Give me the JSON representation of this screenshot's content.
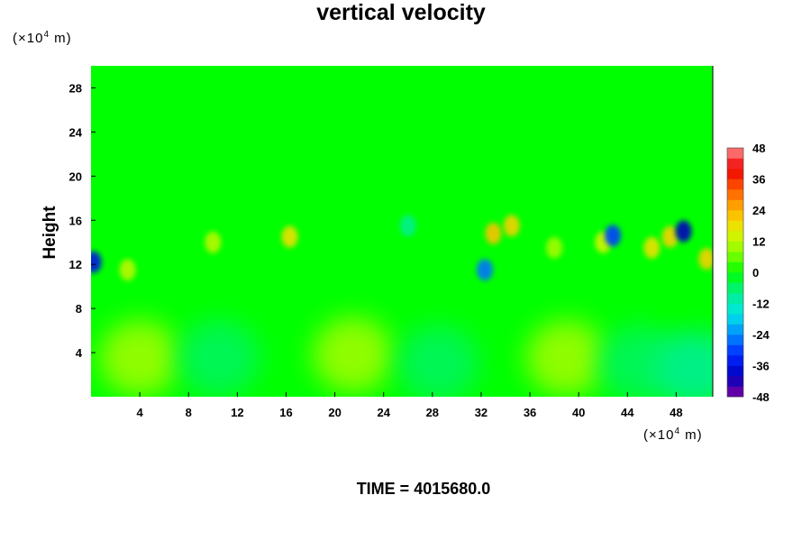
{
  "chart_data": {
    "type": "heatmap",
    "title": "vertical velocity",
    "ylabel": "Height",
    "y_unit": {
      "prefix": "(×10",
      "exp": "4",
      "suffix": " m)"
    },
    "x_unit": {
      "prefix": "(×10",
      "exp": "4",
      "suffix": " m)"
    },
    "xlim": [
      0,
      51
    ],
    "ylim": [
      0,
      30
    ],
    "xticks": [
      4,
      8,
      12,
      16,
      20,
      24,
      28,
      32,
      36,
      40,
      44,
      48
    ],
    "yticks": [
      4,
      8,
      12,
      16,
      20,
      24,
      28
    ],
    "colorbar": {
      "min": -48,
      "max": 48,
      "step": 4,
      "ticks": [
        48,
        36,
        24,
        12,
        0,
        -12,
        -24,
        -36,
        -48
      ]
    },
    "features": [
      {
        "x": 4,
        "y": 3.5,
        "value": 9
      },
      {
        "x": 21.5,
        "y": 3.8,
        "value": 9
      },
      {
        "x": 39,
        "y": 3.5,
        "value": 9
      },
      {
        "x": 10.5,
        "y": 3.5,
        "value": -5
      },
      {
        "x": 28.5,
        "y": 3,
        "value": -5
      },
      {
        "x": 45,
        "y": 3,
        "value": -5
      },
      {
        "x": 49.5,
        "y": 2.5,
        "value": -8
      },
      {
        "x": 16.3,
        "y": 14.5,
        "value": 18
      },
      {
        "x": 33,
        "y": 14.8,
        "value": 22
      },
      {
        "x": 34.5,
        "y": 15.5,
        "value": 20
      },
      {
        "x": 10,
        "y": 14,
        "value": 12
      },
      {
        "x": 3,
        "y": 11.5,
        "value": 12
      },
      {
        "x": 46,
        "y": 13.5,
        "value": 18
      },
      {
        "x": 47.5,
        "y": 14.5,
        "value": 20
      },
      {
        "x": 42,
        "y": 14,
        "value": 14
      },
      {
        "x": 32.3,
        "y": 11.5,
        "value": -26
      },
      {
        "x": 42.8,
        "y": 14.6,
        "value": -30
      },
      {
        "x": 48.6,
        "y": 15,
        "value": -40
      },
      {
        "x": 0.2,
        "y": 12.2,
        "value": -36
      },
      {
        "x": 50.5,
        "y": 12.5,
        "value": 20
      },
      {
        "x": 26,
        "y": 15.5,
        "value": -8
      },
      {
        "x": 38,
        "y": 13.5,
        "value": 10
      }
    ]
  },
  "footer": {
    "time_label": "TIME = 4015680.0"
  }
}
